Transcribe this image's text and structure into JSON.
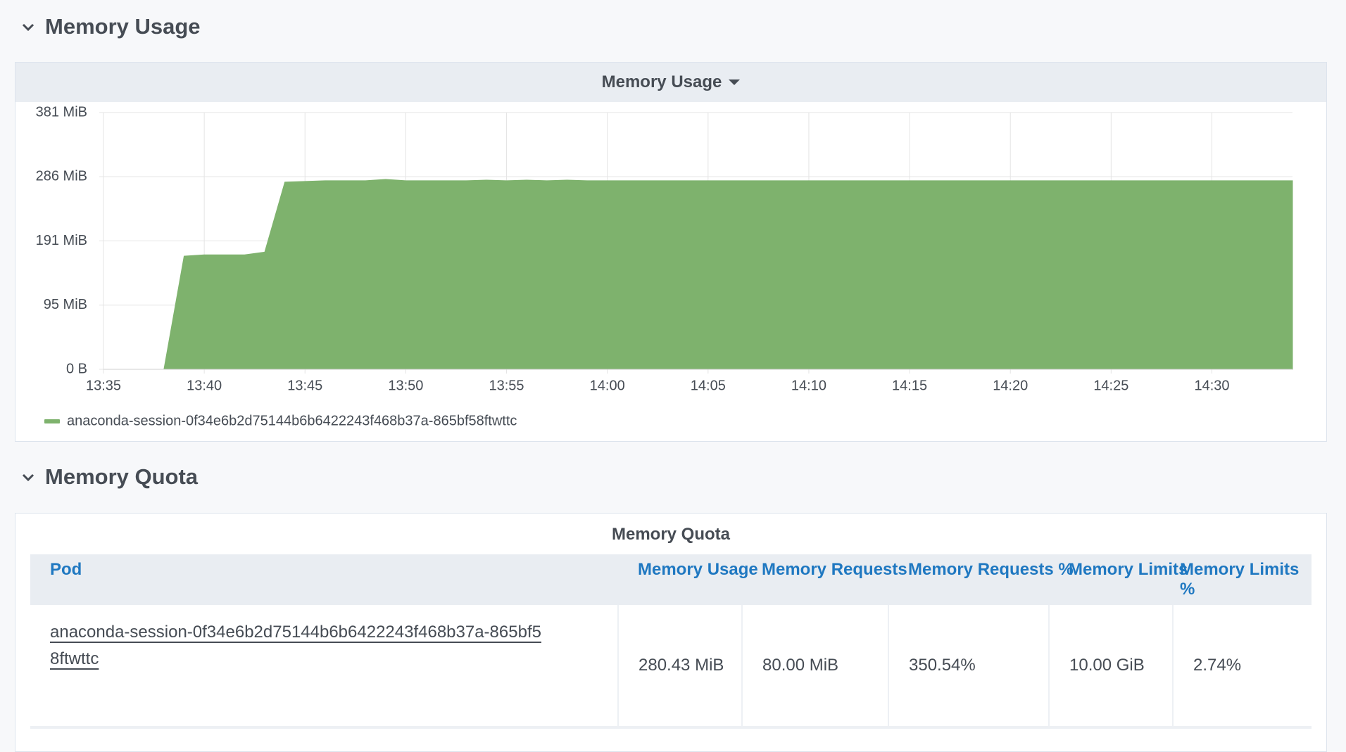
{
  "sections": [
    {
      "title": "Memory Usage"
    },
    {
      "title": "Memory Quota"
    }
  ],
  "chart_data": {
    "type": "area",
    "title": "Memory Usage",
    "x": [
      "13:38",
      "13:39",
      "13:40",
      "13:41",
      "13:42",
      "13:43",
      "13:44",
      "13:45",
      "13:46",
      "13:47",
      "13:48",
      "13:49",
      "13:50",
      "13:51",
      "13:52",
      "13:53",
      "13:54",
      "13:55",
      "13:56",
      "13:57",
      "13:58",
      "13:59",
      "14:00",
      "14:05",
      "14:10",
      "14:15",
      "14:20",
      "14:25",
      "14:30",
      "14:34"
    ],
    "series": [
      {
        "name": "anaconda-session-0f34e6b2d75144b6b6422243f468b37a-865bf58ftwttc",
        "color": "#7eb26d",
        "values": [
          0,
          168,
          170,
          170,
          170,
          174,
          278,
          279,
          280,
          280,
          280,
          282,
          280,
          280,
          280,
          280,
          281,
          280,
          281,
          280,
          281,
          280,
          280,
          280,
          280,
          280,
          280,
          280,
          280,
          280
        ]
      }
    ],
    "xlim": [
      "13:35",
      "14:34"
    ],
    "xticks": [
      "13:35",
      "13:40",
      "13:45",
      "13:50",
      "13:55",
      "14:00",
      "14:05",
      "14:10",
      "14:15",
      "14:20",
      "14:25",
      "14:30"
    ],
    "ylim": [
      0,
      381.2
    ],
    "yticks": [
      {
        "value": 0,
        "label": "0 B"
      },
      {
        "value": 95.3,
        "label": "95 MiB"
      },
      {
        "value": 190.6,
        "label": "191 MiB"
      },
      {
        "value": 285.9,
        "label": "286 MiB"
      },
      {
        "value": 381.2,
        "label": "381 MiB"
      }
    ],
    "grid": true
  },
  "table": {
    "title": "Memory Quota",
    "columns": [
      "Pod",
      "Memory Usage",
      "Memory Requests",
      "Memory Requests %",
      "Memory Limits",
      "Memory Limits %"
    ],
    "rows": [
      [
        "anaconda-session-0f34e6b2d75144b6b6422243f468b37a-865bf58ftwttc",
        "280.43 MiB",
        "80.00 MiB",
        "350.54%",
        "10.00 GiB",
        "2.74%"
      ]
    ]
  }
}
